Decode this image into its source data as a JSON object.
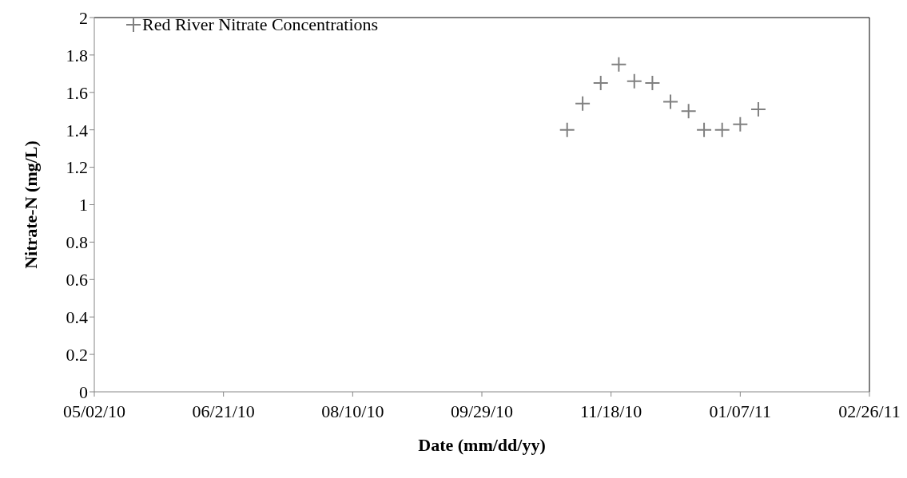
{
  "chart_data": {
    "type": "scatter",
    "xlabel": "Date (mm/dd/yy)",
    "ylabel": "Nitrate-N (mg/L)",
    "x": [
      "2010-11-01",
      "2010-11-07",
      "2010-11-14",
      "2010-11-21",
      "2010-11-27",
      "2010-12-04",
      "2010-12-11",
      "2010-12-18",
      "2010-12-24",
      "2010-12-31",
      "2011-01-07",
      "2011-01-14"
    ],
    "series": [
      {
        "name": "Red River Nitrate Concentrations",
        "color": "#808080",
        "values": [
          1.4,
          1.54,
          1.65,
          1.75,
          1.66,
          1.65,
          1.55,
          1.5,
          1.4,
          1.4,
          1.43,
          1.51
        ]
      }
    ],
    "xlim": [
      "2010-05-02",
      "2011-02-26"
    ],
    "xticks": [
      {
        "value": "2010-05-02",
        "label": "05/02/10"
      },
      {
        "value": "2010-06-21",
        "label": "06/21/10"
      },
      {
        "value": "2010-08-10",
        "label": "08/10/10"
      },
      {
        "value": "2010-09-29",
        "label": "09/29/10"
      },
      {
        "value": "2010-11-18",
        "label": "11/18/10"
      },
      {
        "value": "2011-01-07",
        "label": "01/07/11"
      },
      {
        "value": "2011-02-26",
        "label": "02/26/11"
      }
    ],
    "ylim": [
      0,
      2
    ],
    "yticks": [
      0,
      0.2,
      0.4,
      0.6,
      0.8,
      1,
      1.2,
      1.4,
      1.6,
      1.8,
      2
    ],
    "grid": false,
    "legend": "top left",
    "marker": "cross"
  }
}
